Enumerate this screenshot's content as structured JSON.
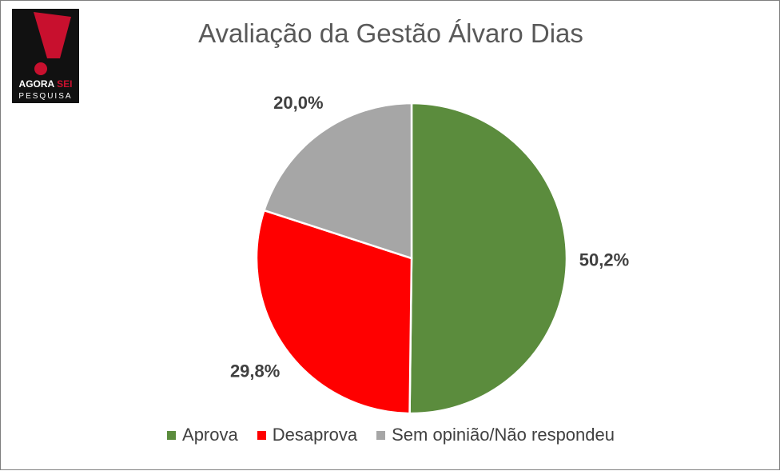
{
  "logo": {
    "line1_a": "AGORA",
    "line1_b": "SEI",
    "line2": "PESQUISA",
    "colors": {
      "background": "#111111",
      "exclamation": "#c8102e"
    }
  },
  "chart_data": {
    "type": "pie",
    "title": "Avaliação da Gestão Álvaro Dias",
    "start_angle_deg": 0,
    "direction": "clockwise",
    "legend_position": "bottom",
    "slices": [
      {
        "label": "Aprova",
        "value": 50.2,
        "display": "50,2%",
        "color": "#5b8c3d"
      },
      {
        "label": "Desaprova",
        "value": 29.8,
        "display": "29,8%",
        "color": "#ff0000"
      },
      {
        "label": "Sem opinião/Não respondeu",
        "value": 20.0,
        "display": "20,0%",
        "color": "#a6a6a6"
      }
    ]
  }
}
